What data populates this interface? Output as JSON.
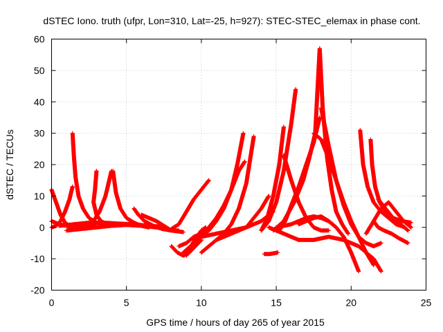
{
  "chart_data": {
    "type": "scatter",
    "title": "dSTEC Iono. truth (ufpr, Lon=310, Lat=-25, h=927): STEC-STEC_elemax in phase cont.",
    "xlabel": "GPS time / hours of day 265 of year 2015",
    "ylabel": "dSTEC  / TECUs",
    "xlim": [
      0,
      25
    ],
    "ylim": [
      -20,
      60
    ],
    "xticks": [
      0,
      5,
      10,
      15,
      20,
      25
    ],
    "yticks": [
      -20,
      -10,
      0,
      10,
      20,
      30,
      40,
      50,
      60
    ],
    "grid": true,
    "marker": "plus",
    "color": "#ff0000",
    "arcs": [
      {
        "x": [
          0.0,
          0.3,
          0.6,
          0.9,
          1.2,
          1.5
        ],
        "y": [
          12,
          8,
          4,
          1.5,
          0.5,
          0
        ]
      },
      {
        "x": [
          0.0,
          0.3,
          0.6,
          0.9,
          1.2,
          1.4
        ],
        "y": [
          0,
          0.5,
          2,
          5,
          9,
          13
        ]
      },
      {
        "x": [
          0.0,
          0.5,
          1.0,
          1.5,
          2.0,
          2.5,
          3.0
        ],
        "y": [
          2,
          1,
          0.5,
          0,
          0,
          0.2,
          0.5
        ]
      },
      {
        "x": [
          1.4,
          1.5,
          1.6,
          1.8,
          2.1,
          2.5,
          3.0,
          3.5
        ],
        "y": [
          30,
          22,
          16,
          10,
          6,
          3,
          1.5,
          1
        ]
      },
      {
        "x": [
          3.0,
          2.9,
          2.8,
          3.0,
          3.3,
          3.7,
          4.1
        ],
        "y": [
          18,
          12,
          8,
          4,
          2,
          1,
          0.5
        ]
      },
      {
        "x": [
          4.0,
          3.6,
          3.2,
          2.8,
          2.5
        ],
        "y": [
          18,
          10,
          5,
          2,
          1
        ]
      },
      {
        "x": [
          4.1,
          4.3,
          4.6,
          5.0,
          5.5,
          6.0,
          6.5
        ],
        "y": [
          18,
          11,
          6,
          3,
          1.5,
          0.5,
          0
        ]
      },
      {
        "x": [
          1.0,
          2.0,
          3.0,
          4.0,
          5.0,
          6.0,
          7.0,
          8.0,
          8.8
        ],
        "y": [
          -1,
          -0.5,
          0,
          0.5,
          0.8,
          0.5,
          0,
          -1,
          -1.5
        ]
      },
      {
        "x": [
          0.5,
          1.5,
          2.5,
          3.5,
          4.5,
          5.5,
          6.5,
          7.5
        ],
        "y": [
          0.5,
          1,
          1.5,
          1.5,
          1.2,
          1,
          0.5,
          0.2
        ]
      },
      {
        "x": [
          5.5,
          5.8,
          6.2,
          6.8,
          7.4,
          8.0,
          8.5
        ],
        "y": [
          6,
          4,
          2,
          0.5,
          -0.5,
          -1,
          -1
        ]
      },
      {
        "x": [
          6.0,
          6.5,
          7.0,
          7.5,
          8.0
        ],
        "y": [
          4,
          3,
          2,
          0.5,
          -1
        ]
      },
      {
        "x": [
          8.0,
          8.5,
          9.0,
          9.5,
          10.0,
          10.5
        ],
        "y": [
          -0.5,
          1,
          5,
          9,
          12,
          15
        ]
      },
      {
        "x": [
          8.0,
          8.4,
          8.8,
          9.2,
          9.6,
          10.0
        ],
        "y": [
          -6,
          -8,
          -9,
          -8,
          -6,
          -4
        ]
      },
      {
        "x": [
          9.0,
          9.3,
          9.7,
          10.0,
          10.3
        ],
        "y": [
          -9,
          -6,
          -3,
          -1,
          0
        ]
      },
      {
        "x": [
          8.5,
          9.0,
          9.5,
          10.0,
          10.5,
          11.0,
          11.5,
          12.0,
          12.5,
          12.9
        ],
        "y": [
          -6,
          -5,
          -3,
          -2,
          0,
          3,
          7,
          12,
          18,
          21
        ]
      },
      {
        "x": [
          8.8,
          9.5,
          10.0,
          10.5,
          11.0,
          11.5,
          12.0,
          12.4,
          12.8
        ],
        "y": [
          -8,
          -5,
          -3,
          -1,
          2,
          6,
          12,
          20,
          30
        ]
      },
      {
        "x": [
          10.0,
          10.5,
          11.0,
          11.5,
          12.0,
          12.5,
          13.0,
          13.5
        ],
        "y": [
          -8,
          -6,
          -4,
          -2,
          1,
          6,
          14,
          29
        ]
      },
      {
        "x": [
          10.0,
          11.0,
          12.0,
          13.0,
          14.0,
          14.8
        ],
        "y": [
          -3,
          -2,
          -1,
          0,
          2,
          5
        ]
      },
      {
        "x": [
          11.0,
          12.0,
          13.0,
          13.5,
          14.0,
          14.5
        ],
        "y": [
          -4,
          -2,
          0,
          3,
          6,
          10
        ]
      },
      {
        "x": [
          14.2,
          14.5,
          14.8,
          15.1
        ],
        "y": [
          -8.5,
          -8.5,
          -8.3,
          -8
        ]
      },
      {
        "x": [
          14.0,
          14.4,
          14.8,
          15.2,
          15.5
        ],
        "y": [
          -1,
          3,
          10,
          20,
          32
        ]
      },
      {
        "x": [
          14.0,
          14.5,
          15.0,
          15.5,
          16.0,
          16.3
        ],
        "y": [
          -1,
          2,
          8,
          18,
          33,
          44
        ]
      },
      {
        "x": [
          15.5,
          16.0,
          16.5,
          17.0,
          17.5,
          18.0,
          18.5
        ],
        "y": [
          23,
          15,
          8,
          3,
          0,
          -1,
          -1
        ]
      },
      {
        "x": [
          15.2,
          15.6,
          16.0,
          16.5,
          17.0,
          17.5,
          17.9
        ],
        "y": [
          -1,
          2,
          7,
          13,
          20,
          27,
          35
        ]
      },
      {
        "x": [
          14.8,
          15.5,
          16.2,
          16.8,
          17.2,
          17.6,
          17.9
        ],
        "y": [
          -1,
          2,
          8,
          15,
          22,
          30,
          57
        ]
      },
      {
        "x": [
          17.9,
          18.1,
          18.4,
          18.7,
          19.0,
          19.4,
          19.8
        ],
        "y": [
          57,
          38,
          22,
          12,
          5,
          1,
          -2
        ]
      },
      {
        "x": [
          18.0,
          18.5,
          19.0,
          19.5,
          20.0,
          20.5,
          21.0,
          21.5,
          22.0
        ],
        "y": [
          38,
          26,
          15,
          7,
          1,
          -3,
          -5,
          -6,
          -5
        ]
      },
      {
        "x": [
          15.0,
          15.5,
          16.0,
          16.5,
          17.0,
          17.5,
          18.0,
          18.5,
          19.0
        ],
        "y": [
          0,
          0.5,
          1,
          2,
          3,
          3.5,
          3,
          2,
          0
        ]
      },
      {
        "x": [
          16.5,
          17.0,
          17.5,
          18.0,
          18.5,
          19.0,
          19.5,
          20.0,
          20.5
        ],
        "y": [
          1,
          2,
          3,
          3.5,
          2,
          0,
          -3,
          -8,
          -14
        ]
      },
      {
        "x": [
          17.5,
          18.0,
          18.5,
          19.0,
          19.5,
          20.0,
          20.5,
          21.0,
          21.5
        ],
        "y": [
          30,
          28,
          22,
          15,
          8,
          2,
          -3,
          -8,
          -12
        ]
      },
      {
        "x": [
          14.5,
          15.5,
          16.5,
          17.5,
          18.5,
          19.5,
          20.5,
          21.5,
          22.0
        ],
        "y": [
          0,
          -2,
          -4,
          -4,
          -3,
          -4,
          -6,
          -10,
          -14
        ]
      },
      {
        "x": [
          20.6,
          20.8,
          21.1,
          21.5,
          22.0,
          22.5,
          23.0,
          23.6
        ],
        "y": [
          31,
          20,
          13,
          8,
          5,
          3,
          1,
          0
        ]
      },
      {
        "x": [
          21.3,
          21.4,
          21.6,
          21.9,
          22.3,
          22.8,
          23.4,
          24.0
        ],
        "y": [
          28,
          20,
          13,
          8,
          5,
          3,
          2,
          1.5
        ]
      },
      {
        "x": [
          21.5,
          21.8,
          22.2,
          22.7,
          23.2,
          23.8
        ],
        "y": [
          2,
          0,
          -1,
          -2,
          -3.5,
          -5
        ]
      },
      {
        "x": [
          21.0,
          21.5,
          22.0,
          22.5,
          23.0,
          23.5,
          24.0
        ],
        "y": [
          -2,
          2,
          6,
          8,
          5,
          2,
          0
        ]
      },
      {
        "x": [
          21.8,
          22.3,
          22.8,
          23.3,
          23.8
        ],
        "y": [
          9,
          6,
          3,
          1,
          -1
        ]
      }
    ]
  }
}
